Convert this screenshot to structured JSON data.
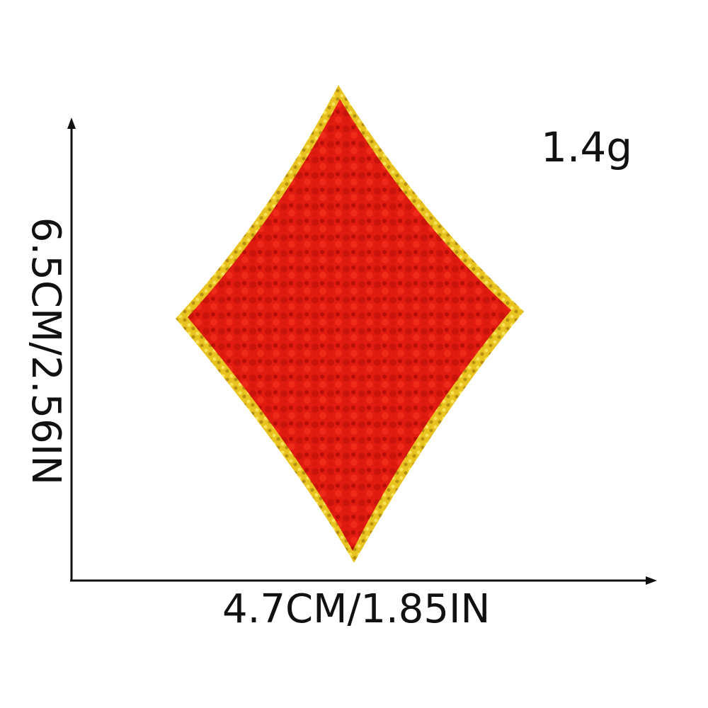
{
  "product": {
    "weight_label": "1.4g",
    "width_label": "4.7CM/1.85IN",
    "height_label": "6.5CM/2.56IN",
    "colors": {
      "patch_fill": "#e11b0f",
      "patch_shade": "#b70f08",
      "border_gold": "#e8c21e",
      "arrow": "#111111"
    }
  }
}
